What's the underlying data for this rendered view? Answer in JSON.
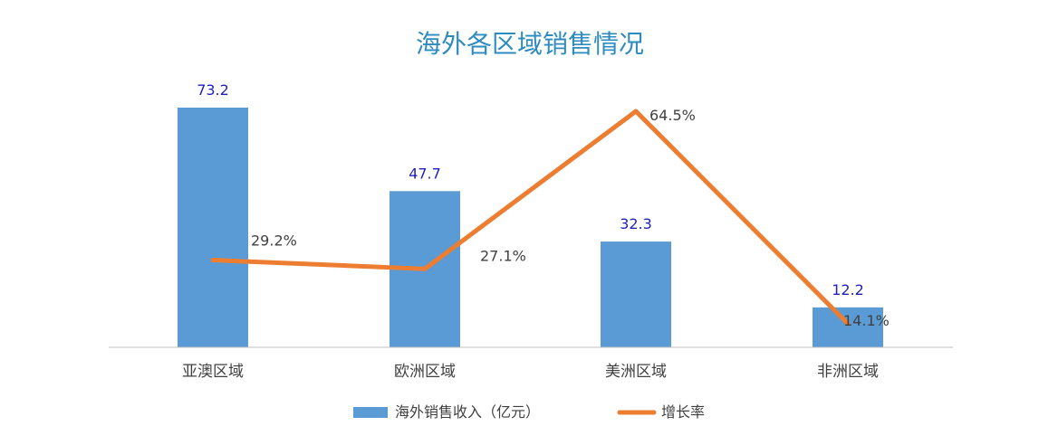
{
  "chart_data": {
    "type": "bar+line",
    "title": "海外各区域销售情况",
    "categories": [
      "亚澳区域",
      "欧洲区域",
      "美洲区域",
      "非洲区域"
    ],
    "series": [
      {
        "name": "海外销售收入（亿元）",
        "type": "bar",
        "values": [
          73.2,
          47.7,
          32.3,
          12.2
        ],
        "labels": [
          "73.2",
          "47.7",
          "32.3",
          "12.2"
        ],
        "color": "#5B9BD5",
        "label_color": "#1F1FBF"
      },
      {
        "name": "增长率",
        "type": "line",
        "values": [
          29.2,
          27.1,
          64.5,
          14.1
        ],
        "labels": [
          "29.2%",
          "27.1%",
          "64.5%",
          "14.1%"
        ],
        "color": "#ED7D31",
        "label_color": "#404040"
      }
    ],
    "legend_position": "bottom",
    "grid": false,
    "title_color": "#2E8BC0",
    "axis_color": "#BFBFBF",
    "text_color": "#404040"
  }
}
